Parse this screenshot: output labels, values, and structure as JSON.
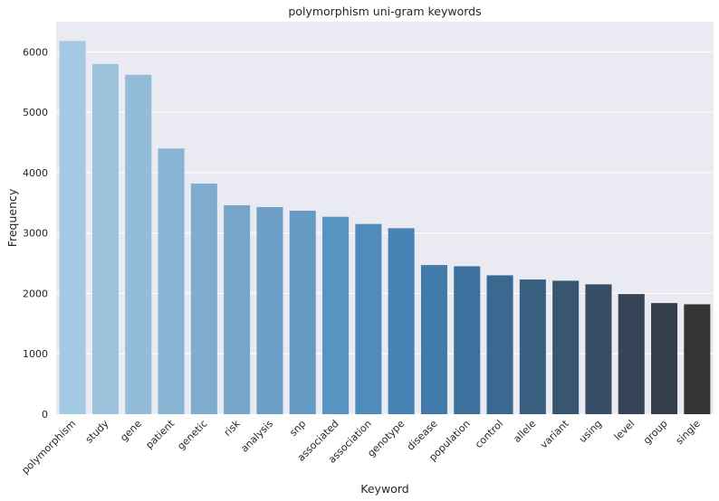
{
  "chart_data": {
    "type": "bar",
    "title": "polymorphism uni-gram keywords",
    "xlabel": "Keyword",
    "ylabel": "Frequency",
    "categories": [
      "polymorphism",
      "study",
      "gene",
      "patient",
      "genetic",
      "risk",
      "analysis",
      "snp",
      "associated",
      "association",
      "genotype",
      "disease",
      "population",
      "control",
      "allele",
      "variant",
      "using",
      "level",
      "group",
      "single"
    ],
    "values": [
      6180,
      5800,
      5620,
      4400,
      3820,
      3460,
      3430,
      3370,
      3270,
      3150,
      3080,
      2470,
      2450,
      2300,
      2230,
      2210,
      2150,
      1990,
      1840,
      1820
    ],
    "ylim": [
      0,
      6500
    ],
    "yticks": [
      0,
      1000,
      2000,
      3000,
      4000,
      5000,
      6000
    ],
    "grid": true,
    "colors": [
      "#a4c9e2",
      "#9cc2dc",
      "#93bcd8",
      "#89b4d3",
      "#80acce",
      "#77a6cb",
      "#6ea0c7",
      "#649ac4",
      "#5993c0",
      "#4f8cbc",
      "#4883b5",
      "#427aab",
      "#3e709d",
      "#3b6890",
      "#395e80",
      "#385672",
      "#364d64",
      "#354557",
      "#343e4b",
      "#343434"
    ],
    "background": "#eaeaf2",
    "gridColor": "#ffffff"
  }
}
